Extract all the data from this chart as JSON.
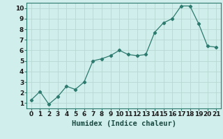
{
  "x": [
    0,
    1,
    2,
    3,
    4,
    5,
    6,
    7,
    8,
    9,
    10,
    11,
    12,
    13,
    14,
    15,
    16,
    17,
    18,
    19,
    20,
    21
  ],
  "y": [
    1.3,
    2.1,
    0.9,
    1.6,
    2.6,
    2.3,
    3.0,
    5.0,
    5.2,
    5.5,
    6.0,
    5.6,
    5.5,
    5.6,
    7.7,
    8.6,
    9.0,
    10.2,
    10.2,
    8.5,
    6.4,
    6.3
  ],
  "line_color": "#2d7a6e",
  "marker": "D",
  "marker_size": 2.2,
  "bg_color": "#d0eeeb",
  "grid_color": "#b8d8d4",
  "xlabel": "Humidex (Indice chaleur)",
  "xlabel_fontsize": 7.5,
  "tick_fontsize": 6.5,
  "xlim": [
    -0.5,
    21.5
  ],
  "ylim": [
    0.5,
    10.5
  ],
  "yticks": [
    1,
    2,
    3,
    4,
    5,
    6,
    7,
    8,
    9,
    10
  ],
  "xticks": [
    0,
    1,
    2,
    3,
    4,
    5,
    6,
    7,
    8,
    9,
    10,
    11,
    12,
    13,
    14,
    15,
    16,
    17,
    18,
    19,
    20,
    21
  ]
}
